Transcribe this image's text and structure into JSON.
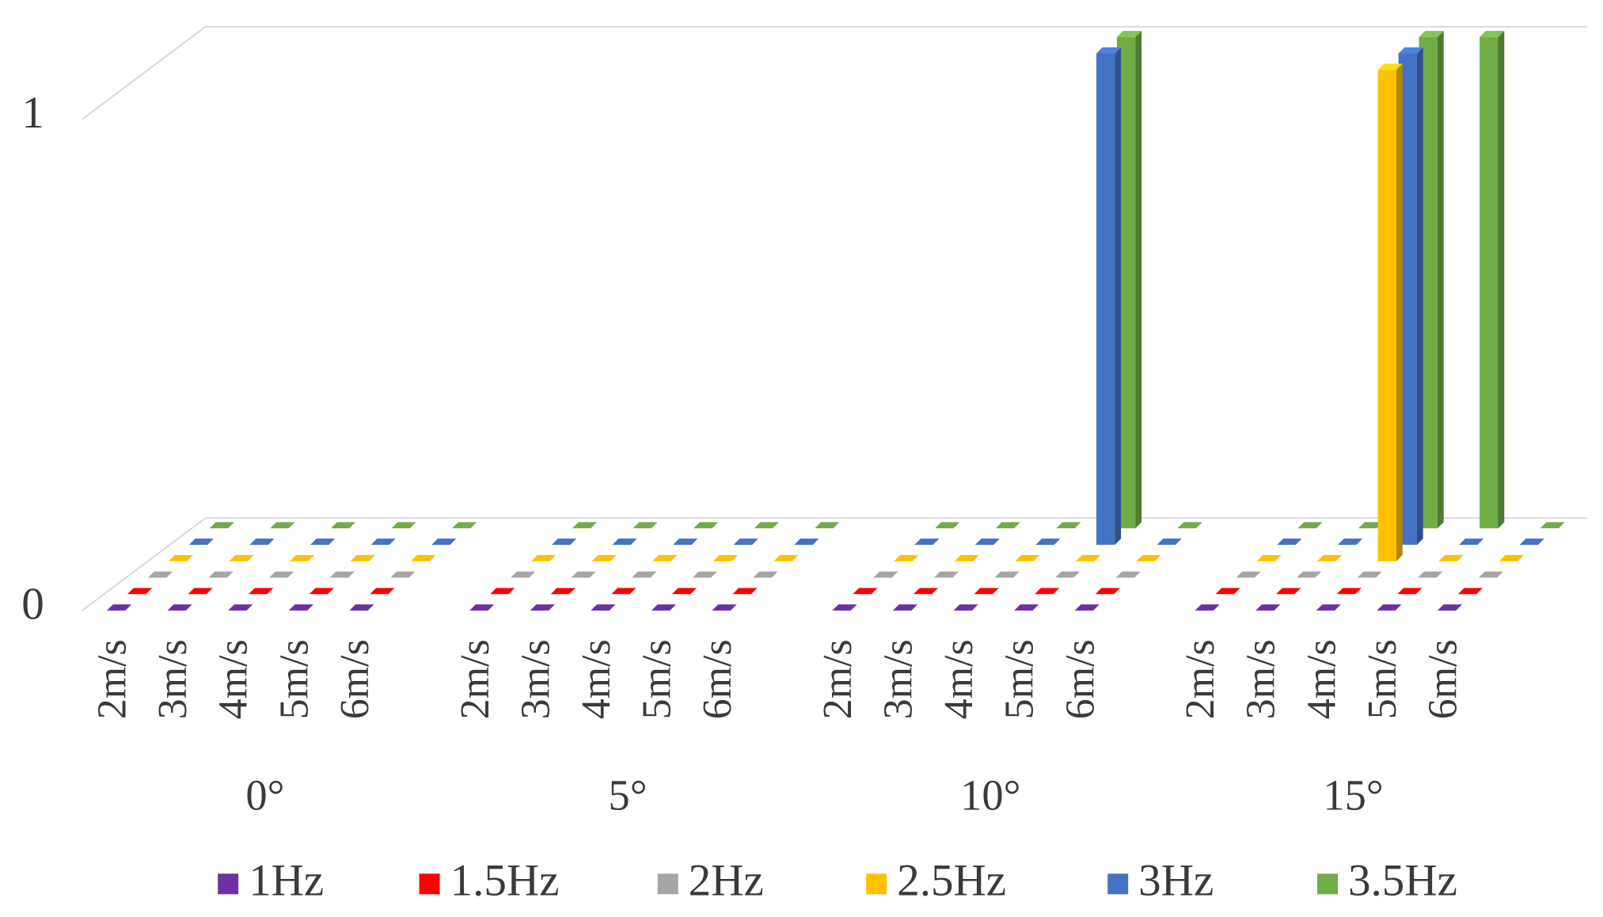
{
  "chart_data": {
    "type": "bar3d",
    "groups": [
      "0°",
      "5°",
      "10°",
      "15°"
    ],
    "categories": [
      "2m/s",
      "3m/s",
      "4m/s",
      "5m/s",
      "6m/s"
    ],
    "ylim": [
      0,
      1
    ],
    "yticks": [
      0,
      1
    ],
    "grid": true,
    "legend": "bottom",
    "series": [
      {
        "name": "1Hz",
        "color": "#7030a0",
        "values": [
          [
            0,
            0,
            0,
            0,
            0
          ],
          [
            0,
            0,
            0,
            0,
            0
          ],
          [
            0,
            0,
            0,
            0,
            0
          ],
          [
            0,
            0,
            0,
            0,
            0
          ]
        ]
      },
      {
        "name": "1.5Hz",
        "color": "#ff0000",
        "values": [
          [
            0,
            0,
            0,
            0,
            0
          ],
          [
            0,
            0,
            0,
            0,
            0
          ],
          [
            0,
            0,
            0,
            0,
            0
          ],
          [
            0,
            0,
            0,
            0,
            0
          ]
        ]
      },
      {
        "name": "2Hz",
        "color": "#a5a5a5",
        "values": [
          [
            0,
            0,
            0,
            0,
            0
          ],
          [
            0,
            0,
            0,
            0,
            0
          ],
          [
            0,
            0,
            0,
            0,
            0
          ],
          [
            0,
            0,
            0,
            0,
            0
          ]
        ]
      },
      {
        "name": "2.5Hz",
        "color": "#ffc000",
        "values": [
          [
            0,
            0,
            0,
            0,
            0
          ],
          [
            0,
            0,
            0,
            0,
            0
          ],
          [
            0,
            0,
            0,
            0,
            0
          ],
          [
            0,
            0,
            1,
            0,
            0
          ]
        ]
      },
      {
        "name": "3Hz",
        "color": "#4472c4",
        "values": [
          [
            0,
            0,
            0,
            0,
            0
          ],
          [
            0,
            0,
            0,
            0,
            0
          ],
          [
            0,
            0,
            0,
            1,
            0
          ],
          [
            0,
            0,
            1,
            0,
            0
          ]
        ]
      },
      {
        "name": "3.5Hz",
        "color": "#70ad47",
        "values": [
          [
            0,
            0,
            0,
            0,
            0
          ],
          [
            0,
            0,
            0,
            0,
            0
          ],
          [
            0,
            0,
            0,
            1,
            0
          ],
          [
            0,
            0,
            1,
            1,
            0
          ]
        ]
      }
    ]
  }
}
